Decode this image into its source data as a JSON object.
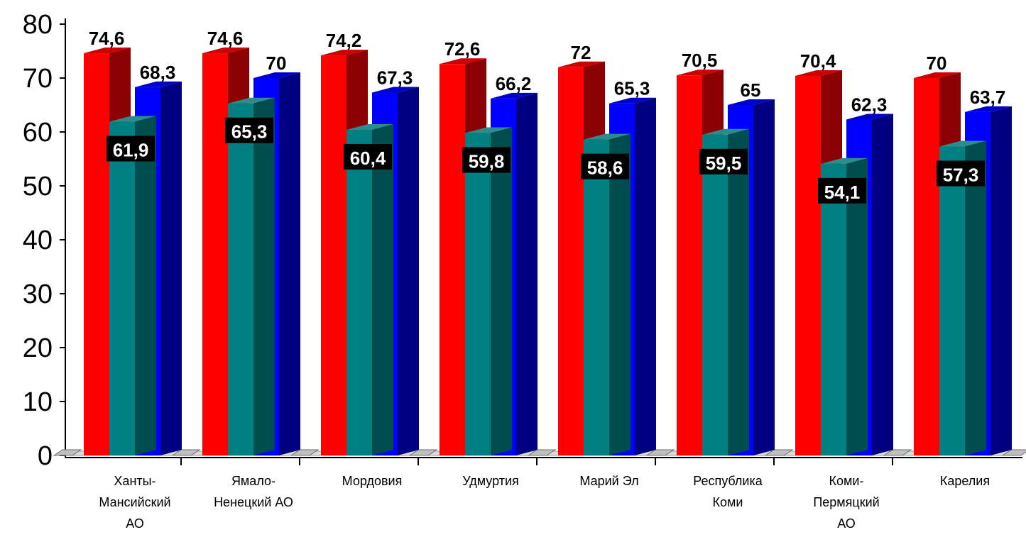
{
  "chart_data": {
    "type": "bar",
    "title": "",
    "xlabel": "",
    "ylabel": "",
    "ylim": [
      0,
      80
    ],
    "yticks": [
      "0",
      "10",
      "20",
      "30",
      "40",
      "50",
      "60",
      "70",
      "80"
    ],
    "grid": false,
    "legend": "none",
    "categories": [
      [
        "Ханты-",
        "Мансийский",
        "АО"
      ],
      [
        "Ямало-",
        "Ненецкий АО"
      ],
      [
        "Мордовия"
      ],
      [
        "Удмуртия"
      ],
      [
        "Марий Эл"
      ],
      [
        "Республика",
        "Коми"
      ],
      [
        "Коми-",
        "Пермяцкий",
        "АО"
      ],
      [
        "Карелия"
      ]
    ],
    "series": [
      {
        "values": [
          74.6,
          74.6,
          74.2,
          72.6,
          72,
          70.5,
          70.4,
          70
        ],
        "labels": [
          "74,6",
          "74,6",
          "74,2",
          "72,6",
          "72",
          "70,5",
          "70,4",
          "70"
        ],
        "color": "#ff0000",
        "side": "#8b0000",
        "top": "#cc0000"
      },
      {
        "values": [
          61.9,
          65.3,
          60.4,
          59.8,
          58.6,
          59.5,
          54.1,
          57.3
        ],
        "labels": [
          "61,9",
          "65,3",
          "60,4",
          "59,8",
          "58,6",
          "59,5",
          "54,1",
          "57,3"
        ],
        "color": "#008080",
        "side": "#004d4d",
        "top": "#2e8b8b"
      },
      {
        "values": [
          68.3,
          70,
          67.3,
          66.2,
          65.3,
          65,
          62.3,
          63.7
        ],
        "labels": [
          "68,3",
          "70",
          "67,3",
          "66,2",
          "65,3",
          "65",
          "62,3",
          "63,7"
        ],
        "color": "#0000ff",
        "side": "#000080",
        "top": "#0000cc"
      }
    ]
  }
}
